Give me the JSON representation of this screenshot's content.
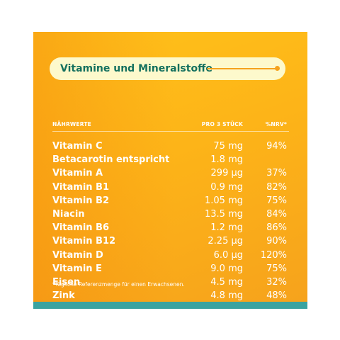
{
  "card": {
    "title": "Vitamine und Mineralstoffe",
    "columns": {
      "name": "NÄHRWERTE",
      "amount": "PRO 3 STÜCK",
      "nrv": "%NRV*"
    },
    "rows": [
      {
        "name": "Vitamin C",
        "amount": "75 mg",
        "nrv": "94%"
      },
      {
        "name": "Betacarotin entspricht",
        "amount": "1.8 mg",
        "nrv": ""
      },
      {
        "name": "Vitamin A",
        "amount": "299 µg",
        "nrv": "37%"
      },
      {
        "name": "Vitamin B1",
        "amount": "0.9 mg",
        "nrv": "82%"
      },
      {
        "name": "Vitamin B2",
        "amount": "1.05 mg",
        "nrv": "75%"
      },
      {
        "name": "Niacin",
        "amount": "13.5 mg",
        "nrv": "84%"
      },
      {
        "name": "Vitamin B6",
        "amount": "1.2 mg",
        "nrv": "86%"
      },
      {
        "name": "Vitamin B12",
        "amount": "2.25 µg",
        "nrv": "90%"
      },
      {
        "name": "Vitamin D",
        "amount": "6.0 µg",
        "nrv": "120%"
      },
      {
        "name": "Vitamin E",
        "amount": "9.0 mg",
        "nrv": "75%"
      },
      {
        "name": "Eisen",
        "amount": "4.5 mg",
        "nrv": "32%"
      },
      {
        "name": "Zink",
        "amount": "4.8 mg",
        "nrv": "48%"
      }
    ],
    "footnote": "*Tägliche Referenzmenge für einen Erwachsenen."
  },
  "colors": {
    "background": "#fdb418",
    "title_text": "#14705e",
    "pill": "#fdf9cc",
    "accent": "#f6a21c",
    "stripe": "#3aa3a0"
  }
}
